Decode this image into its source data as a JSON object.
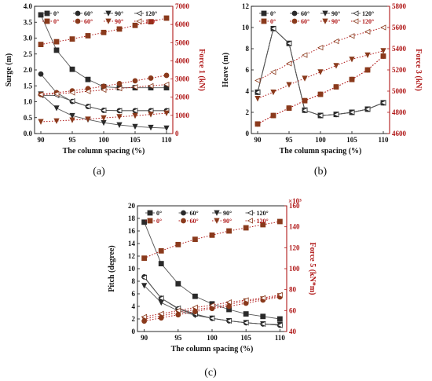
{
  "colors": {
    "left_axis": "#111111",
    "right_axis": "#b01818",
    "left_series": "#555555",
    "right_series": "#b01818"
  },
  "chart_data": [
    {
      "type": "line",
      "panel_label": "(a)",
      "xlabel": "The column spacing (%)",
      "ylabel": "Surge (m)",
      "y2label": "Force 1 (kN)",
      "x": [
        90,
        92.5,
        95,
        97.5,
        100,
        102.5,
        105,
        107.5,
        110
      ],
      "xlim": [
        89,
        111
      ],
      "xticks": [
        90,
        95,
        100,
        105,
        110
      ],
      "ylim": [
        0,
        4.0
      ],
      "yticks": [
        0.0,
        0.5,
        1.0,
        1.5,
        2.0,
        2.5,
        3.0,
        3.5,
        4.0
      ],
      "ytick_labels": [
        "0.0",
        "0.5",
        "1.0",
        "1.5",
        "2.0",
        "2.5",
        "3.0",
        "3.5",
        "4.0"
      ],
      "y2lim": [
        0,
        7000
      ],
      "y2ticks": [
        0,
        1000,
        2000,
        3000,
        4000,
        5000,
        6000,
        7000
      ],
      "y2tick_labels": [
        "0",
        "1000",
        "2000",
        "3000",
        "4000",
        "5000",
        "6000",
        "7000"
      ],
      "legend_left": [
        "0°",
        "60°",
        "90°",
        "120°"
      ],
      "legend_right": [
        "0°",
        "60°",
        "90°",
        "120°"
      ],
      "series_left": [
        {
          "marker": "square",
          "values": [
            3.73,
            2.62,
            2.02,
            1.7,
            1.47,
            1.44,
            1.44,
            1.44,
            1.44
          ]
        },
        {
          "marker": "circle",
          "values": [
            1.87,
            1.28,
            1.01,
            0.85,
            0.73,
            0.72,
            0.72,
            0.72,
            0.72
          ]
        },
        {
          "marker": "tri-down",
          "values": [
            1.24,
            0.8,
            0.56,
            0.44,
            0.34,
            0.27,
            0.22,
            0.19,
            0.17
          ]
        },
        {
          "marker": "tri-left",
          "values": [
            1.2,
            1.2,
            1.02,
            0.85,
            0.73,
            0.72,
            0.72,
            0.72,
            0.72
          ]
        }
      ],
      "series_right": [
        {
          "marker": "square",
          "values": [
            4900,
            5050,
            5200,
            5380,
            5560,
            5750,
            5950,
            6150,
            6350
          ]
        },
        {
          "marker": "circle",
          "values": [
            2150,
            2250,
            2350,
            2470,
            2600,
            2750,
            2900,
            3050,
            3200
          ]
        },
        {
          "marker": "tri-down",
          "values": [
            650,
            690,
            740,
            790,
            860,
            920,
            980,
            1050,
            1120
          ]
        },
        {
          "marker": "tri-left",
          "values": [
            2150,
            2180,
            2250,
            2320,
            2400,
            2480,
            2560,
            2620,
            2700
          ]
        }
      ]
    },
    {
      "type": "line",
      "panel_label": "(b)",
      "xlabel": "The column spacing (%)",
      "ylabel": "Heave (m)",
      "y2label": "Force 3 (kN)",
      "x": [
        90,
        92.5,
        95,
        97.5,
        100,
        102.5,
        105,
        107.5,
        110
      ],
      "xlim": [
        89,
        111
      ],
      "xticks": [
        90,
        95,
        100,
        105,
        110
      ],
      "ylim": [
        0,
        12
      ],
      "yticks": [
        0,
        2,
        4,
        6,
        8,
        10,
        12
      ],
      "ytick_labels": [
        "0",
        "2",
        "4",
        "6",
        "8",
        "10",
        "12"
      ],
      "y2lim": [
        4600,
        5800
      ],
      "y2ticks": [
        4600,
        4800,
        5000,
        5200,
        5400,
        5600,
        5800
      ],
      "y2tick_labels": [
        "4600",
        "4800",
        "5000",
        "5200",
        "5400",
        "5600",
        "5800"
      ],
      "legend_left": [
        "0°",
        "60°",
        "90°",
        "120°"
      ],
      "legend_right": [
        "0°",
        "60°",
        "90°",
        "120°"
      ],
      "series_left": [
        {
          "marker": "square",
          "values": [
            3.9,
            9.9,
            8.5,
            2.2,
            1.7,
            1.8,
            2.0,
            2.3,
            2.9
          ]
        },
        {
          "marker": "circle",
          "values": [
            3.9,
            9.9,
            8.5,
            2.2,
            1.7,
            1.8,
            2.0,
            2.3,
            2.9
          ]
        },
        {
          "marker": "tri-down",
          "values": [
            3.9,
            9.9,
            8.5,
            2.2,
            1.7,
            1.8,
            2.0,
            2.3,
            2.9
          ]
        },
        {
          "marker": "tri-left",
          "values": [
            3.9,
            9.9,
            8.5,
            2.2,
            1.7,
            1.8,
            2.0,
            2.3,
            2.9
          ]
        }
      ],
      "series_right": [
        {
          "marker": "square",
          "values": [
            4690,
            4770,
            4840,
            4910,
            4970,
            5040,
            5110,
            5200,
            5330
          ]
        },
        {
          "marker": "circle",
          "values": [
            4690,
            4770,
            4840,
            4910,
            4970,
            5040,
            5110,
            5200,
            5330
          ]
        },
        {
          "marker": "tri-down",
          "values": [
            4930,
            4990,
            5060,
            5120,
            5180,
            5240,
            5300,
            5340,
            5380
          ]
        },
        {
          "marker": "tri-left",
          "values": [
            5100,
            5180,
            5260,
            5340,
            5410,
            5470,
            5520,
            5560,
            5600
          ]
        }
      ]
    },
    {
      "type": "line",
      "panel_label": "(c)",
      "xlabel": "The column spacing (%)",
      "ylabel": "Pitch (degree)",
      "y2label": "Force 5 (kN*m)",
      "y2multiplier": "×10³",
      "x": [
        90,
        92.5,
        95,
        97.5,
        100,
        102.5,
        105,
        107.5,
        110
      ],
      "xlim": [
        89,
        111
      ],
      "xticks": [
        90,
        95,
        100,
        105,
        110
      ],
      "ylim": [
        0,
        20
      ],
      "yticks": [
        0,
        2,
        4,
        6,
        8,
        10,
        12,
        14,
        16,
        18,
        20
      ],
      "ytick_labels": [
        "0",
        "2",
        "4",
        "6",
        "8",
        "10",
        "12",
        "14",
        "16",
        "18",
        "20"
      ],
      "y2lim": [
        40,
        160
      ],
      "y2ticks": [
        40,
        60,
        80,
        100,
        120,
        140,
        160
      ],
      "y2tick_labels": [
        "40",
        "60",
        "80",
        "100",
        "120",
        "140",
        "160"
      ],
      "legend_left": [
        "0°",
        "60°",
        "90°",
        "120°"
      ],
      "legend_right": [
        "0°",
        "60°",
        "90°",
        "120°"
      ],
      "series_left": [
        {
          "marker": "square",
          "values": [
            17.4,
            10.8,
            7.6,
            5.6,
            4.4,
            3.5,
            2.8,
            2.4,
            2.0
          ]
        },
        {
          "marker": "circle",
          "values": [
            8.7,
            5.3,
            3.6,
            2.7,
            2.1,
            1.7,
            1.4,
            1.2,
            1.0
          ]
        },
        {
          "marker": "tri-down",
          "values": [
            7.3,
            4.6,
            3.3,
            2.6,
            2.1,
            1.7,
            1.4,
            1.2,
            1.1
          ]
        },
        {
          "marker": "tri-left",
          "values": [
            8.6,
            5.3,
            3.7,
            2.8,
            2.1,
            1.7,
            1.4,
            1.2,
            1.0
          ]
        }
      ],
      "series_right": [
        {
          "marker": "square",
          "values": [
            110,
            117,
            123,
            128,
            132,
            136,
            139,
            142,
            145
          ]
        },
        {
          "marker": "circle",
          "values": [
            50,
            53,
            56,
            59,
            62,
            64,
            67,
            70,
            73
          ]
        },
        {
          "marker": "tri-down",
          "values": [
            52,
            55,
            58,
            61,
            63,
            66,
            69,
            71,
            74
          ]
        },
        {
          "marker": "tri-left",
          "values": [
            54,
            57,
            60,
            63,
            65,
            68,
            70,
            72,
            75
          ]
        }
      ]
    }
  ]
}
